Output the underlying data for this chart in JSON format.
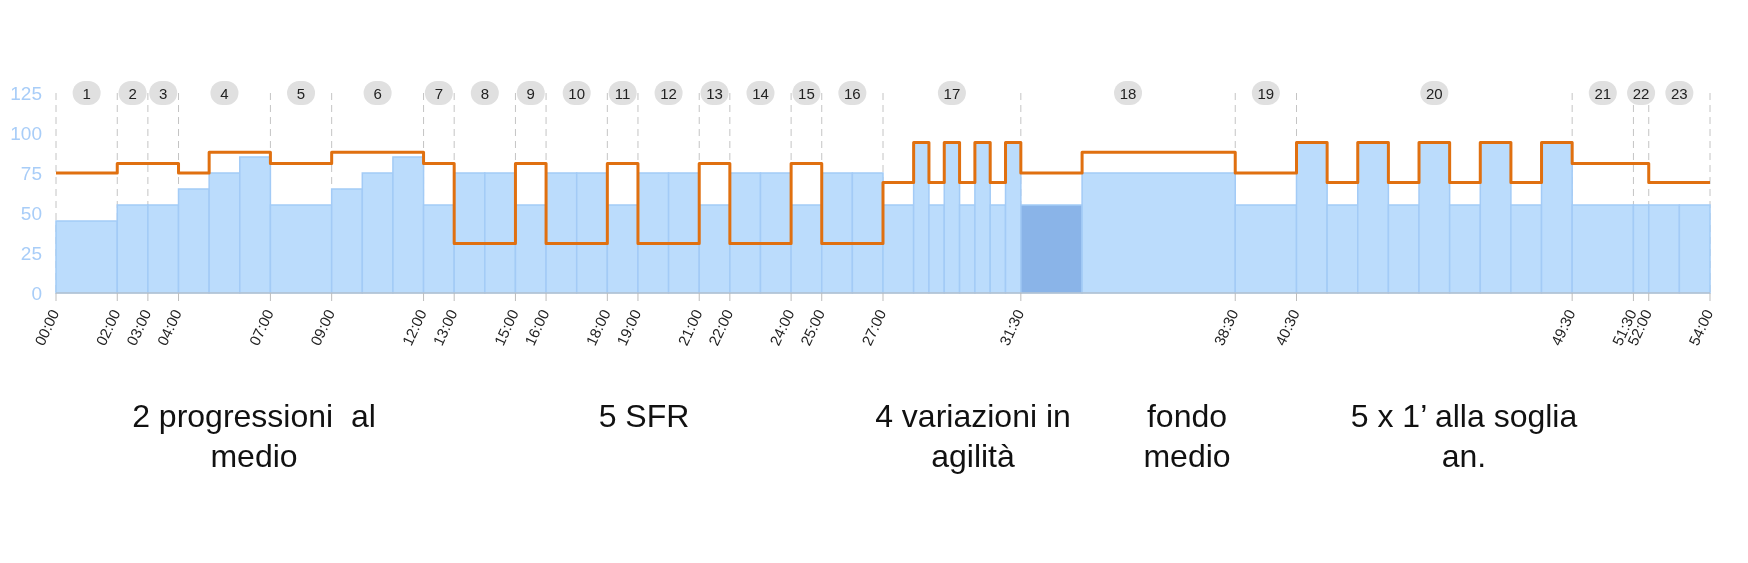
{
  "chart_data": {
    "type": "step",
    "xlim": [
      0,
      54
    ],
    "xticks": [
      {
        "value": 0,
        "label": "00:00"
      },
      {
        "value": 2,
        "label": "02:00"
      },
      {
        "value": 3,
        "label": "03:00"
      },
      {
        "value": 4,
        "label": "04:00"
      },
      {
        "value": 7,
        "label": "07:00"
      },
      {
        "value": 9,
        "label": "09:00"
      },
      {
        "value": 12,
        "label": "12:00"
      },
      {
        "value": 13,
        "label": "13:00"
      },
      {
        "value": 15,
        "label": "15:00"
      },
      {
        "value": 16,
        "label": "16:00"
      },
      {
        "value": 18,
        "label": "18:00"
      },
      {
        "value": 19,
        "label": "19:00"
      },
      {
        "value": 21,
        "label": "21:00"
      },
      {
        "value": 22,
        "label": "22:00"
      },
      {
        "value": 24,
        "label": "24:00"
      },
      {
        "value": 25,
        "label": "25:00"
      },
      {
        "value": 27,
        "label": "27:00"
      },
      {
        "value": 31.5,
        "label": "31:30"
      },
      {
        "value": 38.5,
        "label": "38:30"
      },
      {
        "value": 40.5,
        "label": "40:30"
      },
      {
        "value": 49.5,
        "label": "49:30"
      },
      {
        "value": 51.5,
        "label": "51:30"
      },
      {
        "value": 52,
        "label": "52:00"
      },
      {
        "value": 54,
        "label": "54:00"
      }
    ],
    "ylim": [
      0,
      125
    ],
    "yticks": [
      0,
      25,
      50,
      75,
      100,
      125
    ],
    "grid": "x",
    "series": [
      {
        "type": "histogram",
        "bins": [
          0,
          2,
          3,
          4,
          5,
          6,
          7,
          9,
          10,
          11,
          12,
          13,
          14,
          15,
          16,
          17,
          18,
          19,
          20,
          21,
          22,
          23,
          24,
          25,
          26,
          27,
          28,
          28.5,
          29,
          29.5,
          30,
          30.5,
          31,
          31.5,
          33.5,
          38.5,
          40.5,
          41.5,
          42.5,
          43.5,
          44.5,
          45.5,
          46.5,
          47.5,
          48.5,
          49.5,
          51.5,
          52,
          53,
          54
        ],
        "values": [
          45,
          55,
          55,
          65,
          75,
          85,
          55,
          65,
          75,
          85,
          55,
          75,
          75,
          55,
          75,
          75,
          55,
          75,
          75,
          55,
          75,
          75,
          55,
          75,
          75,
          55,
          94,
          55,
          94,
          55,
          94,
          55,
          94,
          55,
          75,
          55,
          94,
          55,
          94,
          55,
          94,
          55,
          94,
          55,
          94,
          55,
          55,
          55,
          55
        ],
        "colors": [
          "#bbdcfc",
          "#bbdcfc",
          "#bbdcfc",
          "#bbdcfc",
          "#bbdcfc",
          "#bbdcfc",
          "#bbdcfc",
          "#bbdcfc",
          "#bbdcfc",
          "#bbdcfc",
          "#bbdcfc",
          "#bbdcfc",
          "#bbdcfc",
          "#bbdcfc",
          "#bbdcfc",
          "#bbdcfc",
          "#bbdcfc",
          "#bbdcfc",
          "#bbdcfc",
          "#bbdcfc",
          "#bbdcfc",
          "#bbdcfc",
          "#bbdcfc",
          "#bbdcfc",
          "#bbdcfc",
          "#bbdcfc",
          "#bbdcfc",
          "#bbdcfc",
          "#bbdcfc",
          "#bbdcfc",
          "#bbdcfc",
          "#bbdcfc",
          "#bbdcfc",
          "#8ab4e8",
          "#bbdcfc",
          "#bbdcfc",
          "#bbdcfc",
          "#bbdcfc",
          "#bbdcfc",
          "#bbdcfc",
          "#bbdcfc",
          "#bbdcfc",
          "#bbdcfc",
          "#bbdcfc",
          "#bbdcfc",
          "#bbdcfc",
          "#bbdcfc",
          "#bbdcfc",
          "#bbdcfc"
        ]
      },
      {
        "color": "#e07010",
        "x": [
          0,
          2,
          4,
          5,
          7,
          9,
          12,
          13,
          15,
          16,
          18,
          19,
          21,
          22,
          24,
          25,
          27,
          28,
          28.5,
          29,
          29.5,
          30,
          30.5,
          31,
          31.5,
          33.5,
          38.5,
          40.5,
          41.5,
          42.5,
          43.5,
          44.5,
          45.5,
          46.5,
          47.5,
          48.5,
          49.5,
          52,
          54
        ],
        "values": [
          75,
          81,
          75,
          88,
          81,
          88,
          81,
          31,
          81,
          31,
          81,
          31,
          81,
          31,
          81,
          31,
          69,
          94,
          69,
          94,
          69,
          94,
          69,
          94,
          75,
          88,
          75,
          94,
          69,
          94,
          69,
          94,
          69,
          94,
          69,
          94,
          81,
          69,
          69
        ]
      }
    ],
    "annotations": [
      {
        "text": "1",
        "x": 1,
        "y": 125
      },
      {
        "text": "2",
        "x": 2.5,
        "y": 125
      },
      {
        "text": "3",
        "x": 3.5,
        "y": 125
      },
      {
        "text": "4",
        "x": 5.5,
        "y": 125
      },
      {
        "text": "5",
        "x": 8,
        "y": 125
      },
      {
        "text": "6",
        "x": 10.5,
        "y": 125
      },
      {
        "text": "7",
        "x": 12.5,
        "y": 125
      },
      {
        "text": "8",
        "x": 14,
        "y": 125
      },
      {
        "text": "9",
        "x": 15.5,
        "y": 125
      },
      {
        "text": "10",
        "x": 17,
        "y": 125
      },
      {
        "text": "11",
        "x": 18.5,
        "y": 125
      },
      {
        "text": "12",
        "x": 20,
        "y": 125
      },
      {
        "text": "13",
        "x": 21.5,
        "y": 125
      },
      {
        "text": "14",
        "x": 23,
        "y": 125
      },
      {
        "text": "15",
        "x": 24.5,
        "y": 125
      },
      {
        "text": "16",
        "x": 26,
        "y": 125
      },
      {
        "text": "17",
        "x": 29.25,
        "y": 125
      },
      {
        "text": "18",
        "x": 35,
        "y": 125
      },
      {
        "text": "19",
        "x": 39.5,
        "y": 125
      },
      {
        "text": "20",
        "x": 45,
        "y": 125
      },
      {
        "text": "21",
        "x": 50.5,
        "y": 125
      },
      {
        "text": "22",
        "x": 51.75,
        "y": 125
      },
      {
        "text": "23",
        "x": 53,
        "y": 125
      },
      "2 progressioni  al medio",
      "5 SFR",
      "4 variazioni in agilità",
      "fondo medio",
      "5 x 1’ alla soglia an."
    ]
  }
}
